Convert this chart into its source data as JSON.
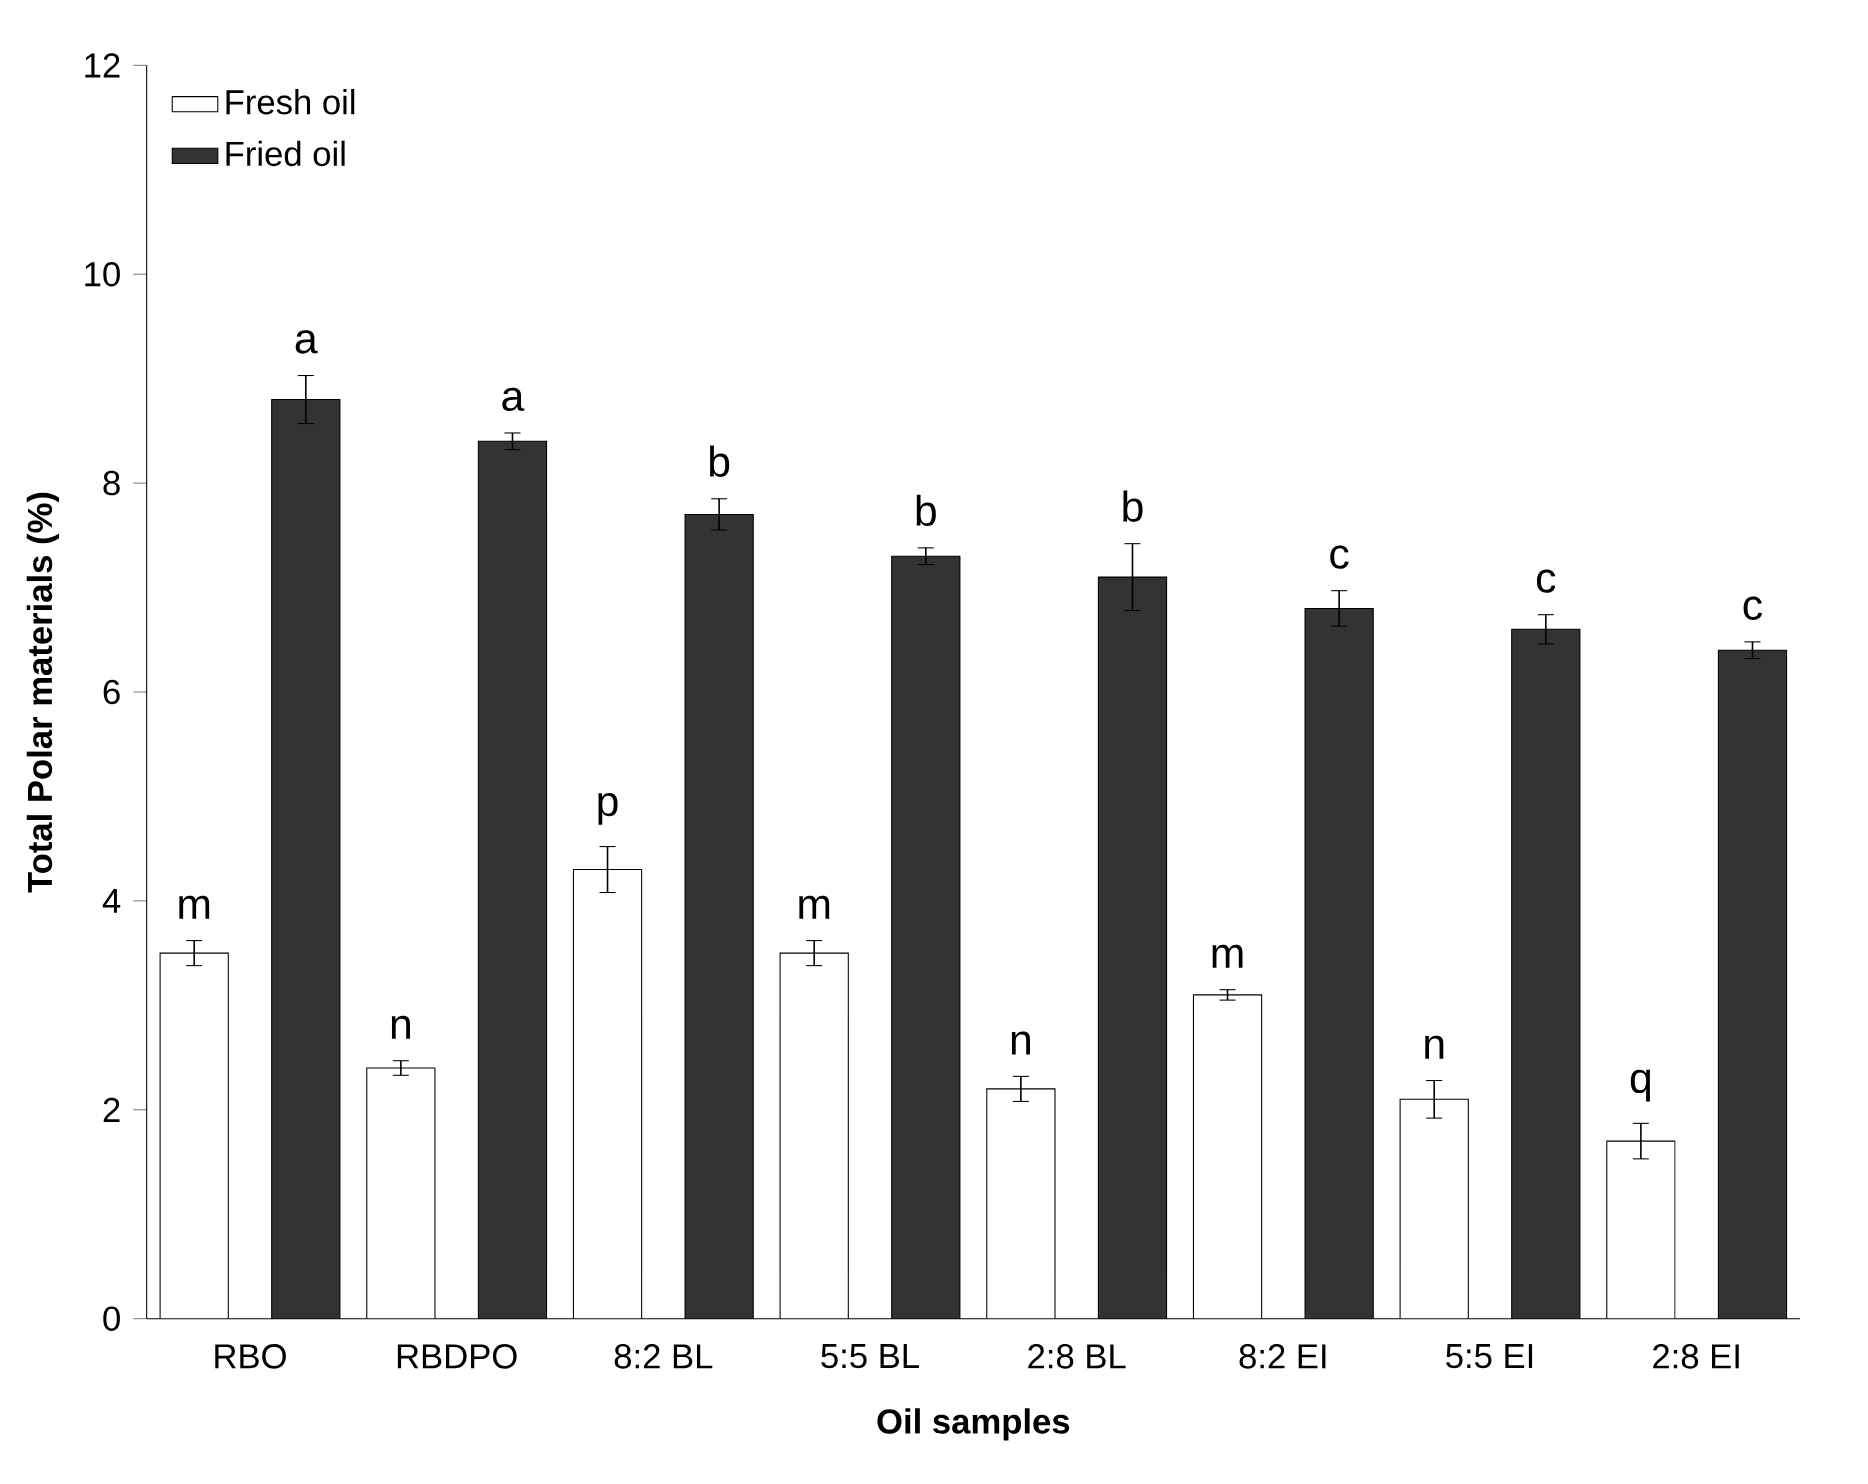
{
  "chart_data": {
    "type": "bar",
    "xlabel": "Oil samples",
    "ylabel": "Total Polar materials (%)",
    "categories": [
      "RBO",
      "RBDPO",
      "8:2 BL",
      "5:5 BL",
      "2:8 BL",
      "8:2 EI",
      "5:5 EI",
      "2:8 EI"
    ],
    "series": [
      {
        "name": "Fresh oil",
        "color": "#ffffff",
        "values": [
          3.5,
          2.4,
          4.3,
          3.5,
          2.2,
          3.1,
          2.1,
          1.7
        ],
        "errors": [
          0.12,
          0.07,
          0.22,
          0.12,
          0.12,
          0.05,
          0.18,
          0.17
        ],
        "value_labels": [
          "m",
          "n",
          "p",
          "m",
          "n",
          "m",
          "n",
          "q"
        ]
      },
      {
        "name": "Fried oil",
        "color": "#333333",
        "values": [
          8.8,
          8.4,
          7.7,
          7.3,
          7.1,
          6.8,
          6.6,
          6.4
        ],
        "errors": [
          0.23,
          0.08,
          0.15,
          0.08,
          0.32,
          0.17,
          0.14,
          0.08
        ],
        "value_labels": [
          "a",
          "a",
          "b",
          "b",
          "b",
          "c",
          "c",
          "c"
        ]
      }
    ],
    "ylim": [
      0,
      12
    ],
    "yticks": [
      0,
      2,
      4,
      6,
      8,
      10,
      12
    ],
    "grid": false,
    "legend": "top left"
  }
}
